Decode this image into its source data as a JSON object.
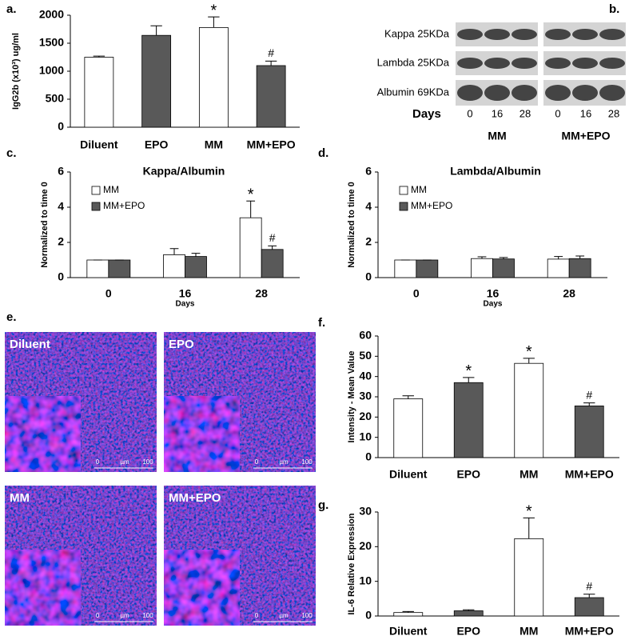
{
  "chart_data": [
    {
      "type": "bar",
      "panel": "a.",
      "y_label": "IgG2b (x10³) ug/ml",
      "categories": [
        "Diluent",
        "EPO",
        "MM",
        "MM+EPO"
      ],
      "values": [
        1250,
        1640,
        1780,
        1100
      ],
      "errors": [
        20,
        170,
        190,
        80
      ],
      "colors": [
        "#ffffff",
        "#595959",
        "#ffffff",
        "#595959"
      ],
      "markers": [
        null,
        null,
        "*",
        "#"
      ],
      "ylim": [
        0,
        2000
      ],
      "yticks": [
        0,
        500,
        1000,
        1500,
        2000
      ]
    },
    {
      "type": "bar",
      "panel": "c.",
      "title": "Kappa/Albumin",
      "y_label": "Normalized  to time 0",
      "x_label": "Days",
      "categories": [
        "0",
        "16",
        "28"
      ],
      "series": [
        {
          "name": "MM",
          "color": "#ffffff",
          "values": [
            1,
            1.3,
            3.4
          ],
          "errors": [
            0,
            0.35,
            0.95
          ],
          "markers": [
            null,
            null,
            "*"
          ]
        },
        {
          "name": "MM+EPO",
          "color": "#595959",
          "values": [
            1,
            1.2,
            1.6
          ],
          "errors": [
            0,
            0.18,
            0.2
          ],
          "markers": [
            null,
            null,
            "#"
          ]
        }
      ],
      "ylim": [
        0,
        6
      ],
      "yticks": [
        0,
        2,
        4,
        6
      ]
    },
    {
      "type": "bar",
      "panel": "d.",
      "title": "Lambda/Albumin",
      "y_label": "Normalized  to time 0",
      "x_label": "Days",
      "categories": [
        "0",
        "16",
        "28"
      ],
      "series": [
        {
          "name": "MM",
          "color": "#ffffff",
          "values": [
            1,
            1.08,
            1.05
          ],
          "errors": [
            0,
            0.1,
            0.15
          ]
        },
        {
          "name": "MM+EPO",
          "color": "#595959",
          "values": [
            1,
            1.06,
            1.08
          ],
          "errors": [
            0,
            0.08,
            0.15
          ]
        }
      ],
      "ylim": [
        0,
        6
      ],
      "yticks": [
        0,
        2,
        4,
        6
      ]
    },
    {
      "type": "bar",
      "panel": "f.",
      "y_label": "Intensity - Mean Value",
      "categories": [
        "Diluent",
        "EPO",
        "MM",
        "MM+EPO"
      ],
      "values": [
        29,
        37,
        46.5,
        25.5
      ],
      "errors": [
        1.5,
        2.5,
        2.5,
        1.5
      ],
      "colors": [
        "#ffffff",
        "#595959",
        "#ffffff",
        "#595959"
      ],
      "markers": [
        null,
        "*",
        "*",
        "#"
      ],
      "ylim": [
        0,
        60
      ],
      "yticks": [
        0,
        10,
        20,
        30,
        40,
        50,
        60
      ]
    },
    {
      "type": "bar",
      "panel": "g.",
      "y_label": "IL-6 Relative Expression",
      "categories": [
        "Diluent",
        "EPO",
        "MM",
        "MM+EPO"
      ],
      "values": [
        1,
        1.5,
        22.3,
        5.3
      ],
      "errors": [
        0.3,
        0.3,
        6,
        1
      ],
      "colors": [
        "#ffffff",
        "#595959",
        "#ffffff",
        "#595959"
      ],
      "markers": [
        null,
        null,
        "*",
        "#"
      ],
      "ylim": [
        0,
        30
      ],
      "yticks": [
        0,
        10,
        20,
        30
      ]
    }
  ],
  "blot": {
    "panel": "b.",
    "rows": [
      "Kappa 25KDa",
      "Lambda 25KDa",
      "Albumin 69KDa"
    ],
    "days_label": "Days",
    "days": [
      "0",
      "16",
      "28",
      "0",
      "16",
      "28"
    ],
    "groups": [
      "MM",
      "MM+EPO"
    ]
  },
  "micrographs": {
    "panel": "e.",
    "images": [
      {
        "label": "Diluent",
        "scale": [
          "0",
          "µm",
          "100"
        ]
      },
      {
        "label": "EPO",
        "scale": [
          "0",
          "µm",
          "100"
        ]
      },
      {
        "label": "MM",
        "scale": [
          "0",
          "µm",
          "100"
        ]
      },
      {
        "label": "MM+EPO",
        "scale": [
          "0",
          "µm",
          "100"
        ]
      }
    ]
  }
}
